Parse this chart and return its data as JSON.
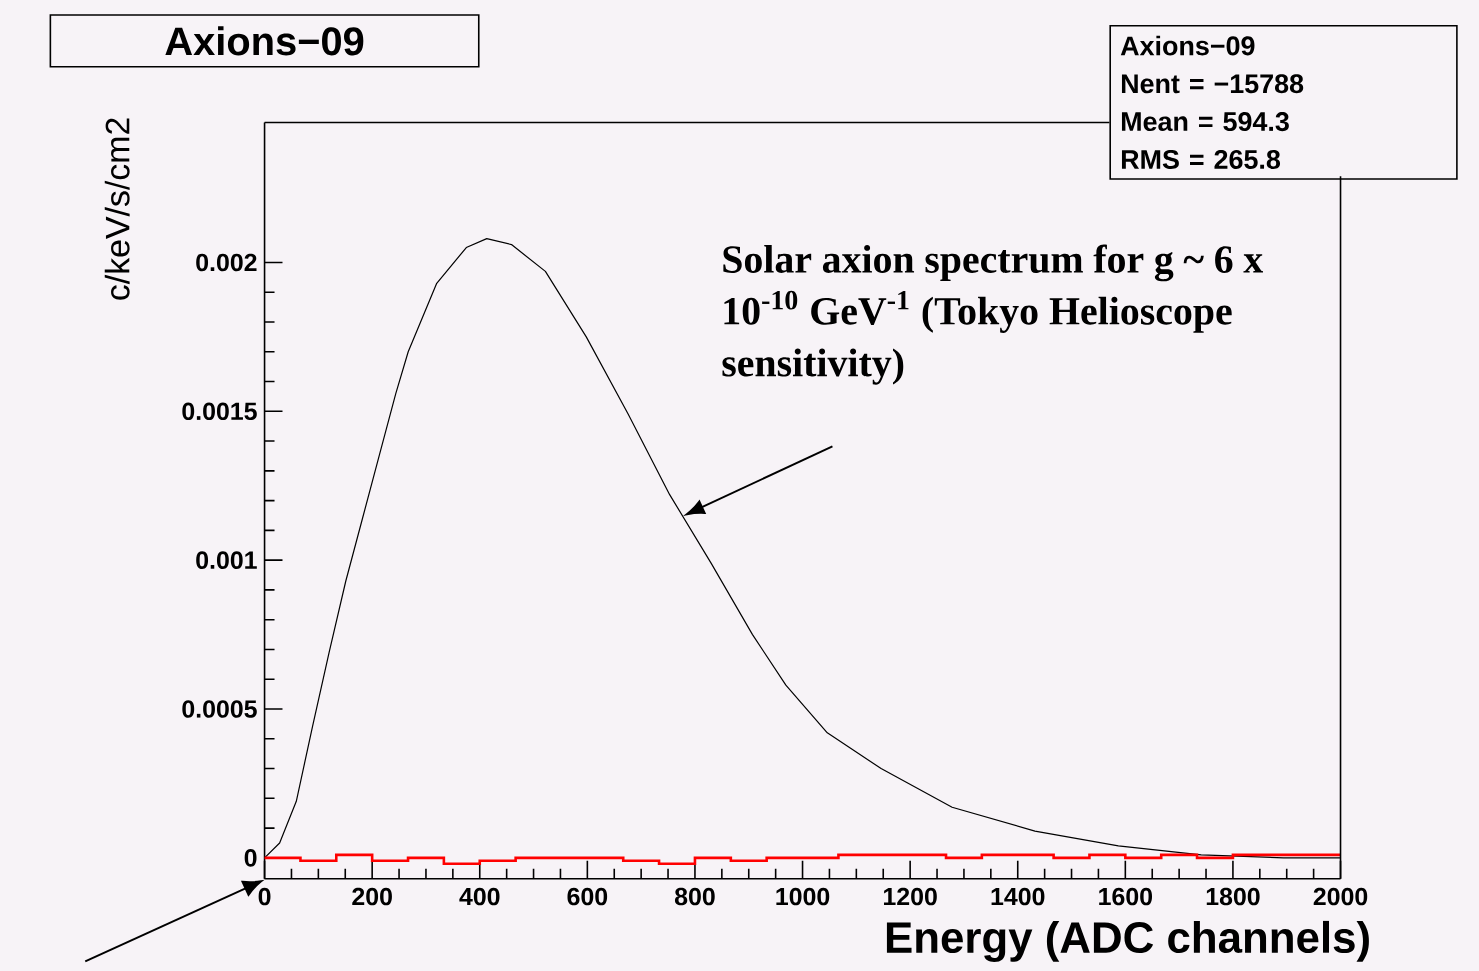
{
  "chart_data": {
    "type": "line",
    "title": "Axions−09",
    "xlabel": "Energy (ADC channels)",
    "ylabel": "c/keV/s/cm2",
    "xlim": [
      0,
      2000
    ],
    "ylim": [
      -7e-05,
      0.00247
    ],
    "xticks": [
      0,
      200,
      400,
      600,
      800,
      1000,
      1200,
      1400,
      1600,
      1800,
      2000
    ],
    "yticks": [
      0,
      0.0005,
      0.001,
      0.0015,
      0.002
    ],
    "grid": false,
    "series": [
      {
        "color": "#000000",
        "x": [
          0,
          28,
          59,
          89,
          120,
          151,
          182,
          213,
          244,
          267,
          320,
          375,
          413,
          459,
          522,
          598,
          676,
          753,
          830,
          907,
          969,
          1046,
          1146,
          1278,
          1432,
          1587,
          1741,
          1894,
          2000
        ],
        "values": [
          0,
          5e-05,
          0.00019,
          0.00044,
          0.00069,
          0.00093,
          0.00114,
          0.00135,
          0.00156,
          0.0017,
          0.00193,
          0.00205,
          0.00208,
          0.00206,
          0.00197,
          0.00175,
          0.00149,
          0.00122,
          0.00099,
          0.00075,
          0.00058,
          0.00042,
          0.0003,
          0.00017,
          9e-05,
          4e-05,
          1e-05,
          0,
          0
        ]
      },
      {
        "type": "histogram",
        "color": "#ff0000",
        "bins": [
          0,
          66.7,
          133.3,
          200,
          266.7,
          333.3,
          400,
          466.7,
          533.3,
          600,
          666.7,
          733.3,
          800,
          866.7,
          933.3,
          1000,
          1066.7,
          1133.3,
          1200,
          1266.7,
          1333.3,
          1400,
          1466.7,
          1533.3,
          1600,
          1666.7,
          1733.3,
          1800,
          1866.7,
          1933.3,
          2000
        ],
        "values": [
          0,
          -1e-05,
          1e-05,
          -1e-05,
          0,
          -2e-05,
          -1e-05,
          0,
          0,
          0,
          -1e-05,
          -2e-05,
          0,
          -1e-05,
          0,
          0,
          1e-05,
          1e-05,
          1e-05,
          0,
          1e-05,
          1e-05,
          0,
          1e-05,
          0,
          1e-05,
          0,
          1e-05,
          1e-05,
          1e-05
        ]
      }
    ],
    "annotations": [
      "Axions−09",
      "Nent = −15788",
      "Mean  =  594.3",
      "RMS   =  265.8",
      "Solar axion spectrum for g ~ 6 x 10$^{-10}$ GeV$^{-1}$ (Tokyo Helioscope sensitivity)"
    ]
  }
}
